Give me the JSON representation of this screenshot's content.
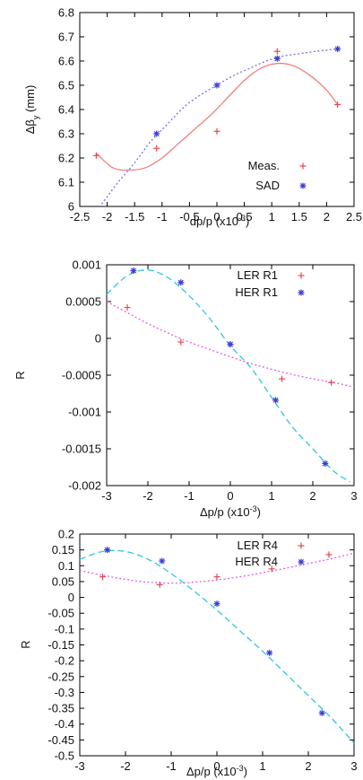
{
  "chart_data": [
    {
      "type": "scatter",
      "ylabel": "Δβy (mm)",
      "xlabel": "dp/p (x10-3)",
      "xlim": [
        -2.5,
        2.5
      ],
      "ylim": [
        6.0,
        6.8
      ],
      "xticks": [
        "-2.5",
        "-2",
        "-1.5",
        "-1",
        "-0.5",
        "0",
        "0.5",
        "1",
        "1.5",
        "2",
        "2.5"
      ],
      "yticks": [
        "6",
        "6.1",
        "6.2",
        "6.3",
        "6.4",
        "6.5",
        "6.6",
        "6.7",
        "6.8"
      ],
      "legend_position": "bottom-right",
      "grid": false,
      "series": [
        {
          "name": "Meas.",
          "marker": "plus",
          "color": "#e8474f",
          "x": [
            -2.2,
            -1.1,
            0.0,
            1.1,
            2.2
          ],
          "y": [
            6.21,
            6.24,
            6.31,
            6.64,
            6.42
          ],
          "fit": "solid",
          "fit_color": "#f08080",
          "fit_x": [
            -2.2,
            -1.9,
            -1.6,
            -1.3,
            -1.0,
            -0.7,
            -0.4,
            -0.1,
            0.2,
            0.5,
            0.8,
            1.1,
            1.4,
            1.7,
            2.0,
            2.2
          ],
          "fit_y": [
            6.22,
            6.16,
            6.15,
            6.16,
            6.2,
            6.26,
            6.32,
            6.38,
            6.45,
            6.52,
            6.57,
            6.59,
            6.58,
            6.54,
            6.48,
            6.42
          ]
        },
        {
          "name": "SAD",
          "marker": "star",
          "color": "#3a3ad6",
          "x": [
            -1.1,
            0.0,
            1.1,
            2.2
          ],
          "y": [
            6.3,
            6.5,
            6.61,
            6.65
          ],
          "fit": "dotted",
          "fit_color": "#7373e8",
          "fit_x": [
            -2.1,
            -1.8,
            -1.5,
            -1.2,
            -0.9,
            -0.6,
            -0.3,
            0.0,
            0.3,
            0.6,
            0.9,
            1.2,
            1.5,
            1.8,
            2.2
          ],
          "fit_y": [
            6.01,
            6.1,
            6.18,
            6.27,
            6.34,
            6.41,
            6.46,
            6.5,
            6.54,
            6.57,
            6.6,
            6.62,
            6.63,
            6.64,
            6.65
          ]
        }
      ]
    },
    {
      "type": "scatter",
      "ylabel": "R",
      "xlabel": "Δp/p (x10-3)",
      "xlim": [
        -3,
        3
      ],
      "ylim": [
        -0.002,
        0.001
      ],
      "xticks": [
        "-3",
        "-2",
        "-1",
        "0",
        "1",
        "2",
        "3"
      ],
      "yticks": [
        "0.001",
        "0.0005",
        "0",
        "-0.0005",
        "-0.001",
        "-0.0015",
        "-0.002"
      ],
      "legend_position": "top-right",
      "grid": false,
      "series": [
        {
          "name": "LER R1",
          "marker": "plus",
          "color": "#e8474f",
          "x": [
            -2.5,
            -1.2,
            0.0,
            1.25,
            2.45
          ],
          "y": [
            0.00042,
            -5e-05,
            -8e-05,
            -0.00055,
            -0.0006
          ],
          "fit": "dotted",
          "fit_color": "#e060e0",
          "fit_x": [
            -3,
            -2.5,
            -2,
            -1.5,
            -1,
            -0.5,
            0,
            0.5,
            1,
            1.5,
            2,
            2.5,
            3
          ],
          "fit_y": [
            0.0005,
            0.00035,
            0.0002,
            7e-05,
            -5e-05,
            -0.00015,
            -0.00025,
            -0.00034,
            -0.00042,
            -0.00049,
            -0.00055,
            -0.0006,
            -0.00066
          ]
        },
        {
          "name": "HER R1",
          "marker": "star",
          "color": "#3a3ad6",
          "x": [
            -2.35,
            -1.2,
            0.0,
            1.1,
            2.3
          ],
          "y": [
            0.00092,
            0.00076,
            -8e-05,
            -0.00084,
            -0.0017
          ],
          "fit": "dashed",
          "fit_color": "#30c8d8",
          "fit_x": [
            -3,
            -2.5,
            -2,
            -1.5,
            -1,
            -0.5,
            0,
            0.5,
            1,
            1.5,
            2,
            2.5,
            2.9
          ],
          "fit_y": [
            0.0006,
            0.00085,
            0.00093,
            0.00082,
            0.00058,
            0.00027,
            -0.0001,
            -0.0004,
            -0.0008,
            -0.0012,
            -0.0015,
            -0.0018,
            -0.00195
          ]
        }
      ]
    },
    {
      "type": "scatter",
      "ylabel": "R",
      "xlabel": "Δp/p (x10-3)",
      "xlim": [
        -3,
        3
      ],
      "ylim": [
        -0.5,
        0.2
      ],
      "xticks": [
        "-3",
        "-2",
        "-1",
        "0",
        "1",
        "2",
        "3"
      ],
      "yticks": [
        "0.2",
        "0.15",
        "0.1",
        "0.05",
        "0",
        "-0.05",
        "-0.1",
        "-0.15",
        "-0.2",
        "-0.25",
        "-0.3",
        "-0.35",
        "-0.4",
        "-0.45",
        "-0.5"
      ],
      "legend_position": "top-right",
      "grid": false,
      "series": [
        {
          "name": "LER R4",
          "marker": "plus",
          "color": "#e8474f",
          "x": [
            -2.5,
            -1.25,
            0.0,
            1.2,
            2.45
          ],
          "y": [
            0.065,
            0.04,
            0.065,
            0.09,
            0.135
          ],
          "fit": "dotted",
          "fit_color": "#e060e0",
          "fit_x": [
            -3,
            -2.5,
            -2,
            -1.5,
            -1,
            -0.5,
            0,
            0.5,
            1,
            1.5,
            2,
            2.5,
            3
          ],
          "fit_y": [
            0.085,
            0.07,
            0.057,
            0.048,
            0.045,
            0.048,
            0.055,
            0.065,
            0.078,
            0.092,
            0.107,
            0.122,
            0.14
          ]
        },
        {
          "name": "HER R4",
          "marker": "star",
          "color": "#3a3ad6",
          "x": [
            -2.4,
            -1.2,
            0.0,
            1.15,
            2.3
          ],
          "y": [
            0.15,
            0.115,
            -0.02,
            -0.175,
            -0.365
          ],
          "fit": "dashed",
          "fit_color": "#30c8d8",
          "fit_x": [
            -3,
            -2.5,
            -2,
            -1.5,
            -1,
            -0.5,
            0,
            0.5,
            1,
            1.5,
            2,
            2.5,
            3
          ],
          "fit_y": [
            0.12,
            0.145,
            0.145,
            0.12,
            0.075,
            0.02,
            -0.04,
            -0.105,
            -0.17,
            -0.24,
            -0.31,
            -0.38,
            -0.46
          ]
        }
      ]
    }
  ]
}
